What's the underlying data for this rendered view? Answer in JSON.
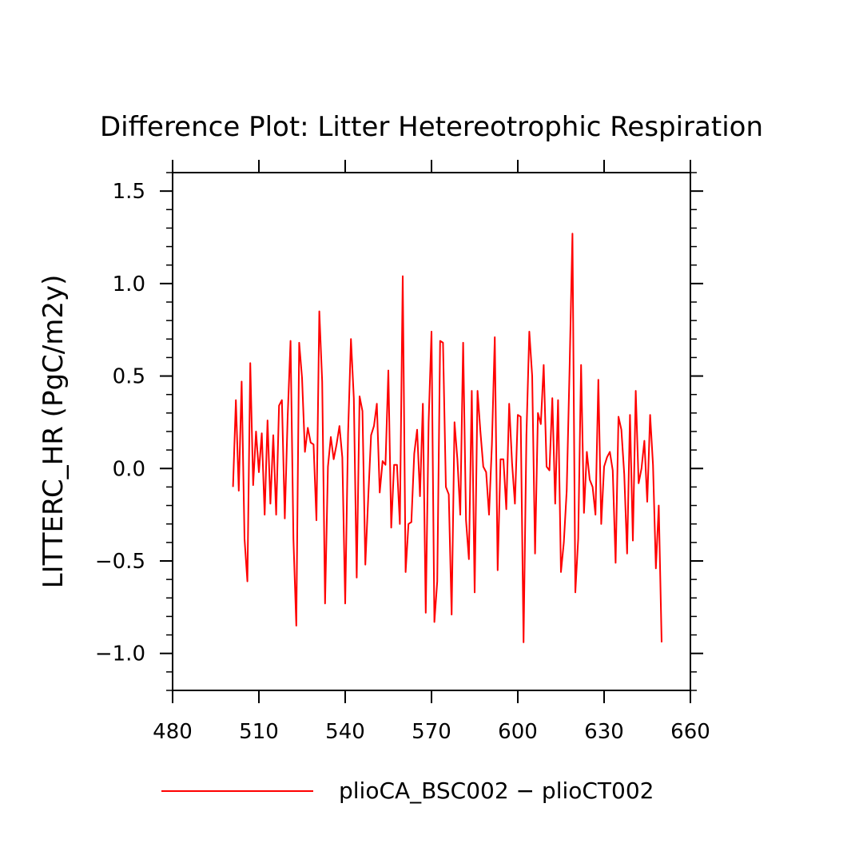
{
  "chart_data": {
    "type": "line",
    "title": "Difference Plot: Litter Hetereotrophic Respiration",
    "xlabel": "",
    "ylabel": "LITTERC_HR  (PgC/m2y)",
    "xlim": [
      480,
      660
    ],
    "ylim": [
      -1.2,
      1.6
    ],
    "xticks": [
      480,
      510,
      540,
      570,
      600,
      630,
      660
    ],
    "xtick_labels": [
      "480",
      "510",
      "540",
      "570",
      "600",
      "630",
      "660"
    ],
    "yticks": [
      -1.0,
      -0.5,
      0.0,
      0.5,
      1.0,
      1.5
    ],
    "ytick_labels": [
      "−1.0",
      "−0.5",
      "0.0",
      "0.5",
      "1.0",
      "1.5"
    ],
    "grid": false,
    "legend_position": "bottom",
    "series": [
      {
        "name": "plioCA_BSC002 − plioCT002",
        "color": "#ff0000",
        "x": [
          501,
          502,
          503,
          504,
          505,
          506,
          507,
          508,
          509,
          510,
          511,
          512,
          513,
          514,
          515,
          516,
          517,
          518,
          519,
          520,
          521,
          522,
          523,
          524,
          525,
          526,
          527,
          528,
          529,
          530,
          531,
          532,
          533,
          534,
          535,
          536,
          537,
          538,
          539,
          540,
          541,
          542,
          543,
          544,
          545,
          546,
          547,
          548,
          549,
          550,
          551,
          552,
          553,
          554,
          555,
          556,
          557,
          558,
          559,
          560,
          561,
          562,
          563,
          564,
          565,
          566,
          567,
          568,
          569,
          570,
          571,
          572,
          573,
          574,
          575,
          576,
          577,
          578,
          579,
          580,
          581,
          582,
          583,
          584,
          585,
          586,
          587,
          588,
          589,
          590,
          591,
          592,
          593,
          594,
          595,
          596,
          597,
          598,
          599,
          600,
          601,
          602,
          603,
          604,
          605,
          606,
          607,
          608,
          609,
          610,
          611,
          612,
          613,
          614,
          615,
          616,
          617,
          618,
          619,
          620,
          621,
          622,
          623,
          624,
          625,
          626,
          627,
          628,
          629,
          630,
          631,
          632,
          633,
          634,
          635,
          636,
          637,
          638,
          639,
          640,
          641,
          642,
          643,
          644,
          645,
          646,
          647,
          648,
          649,
          650
        ],
        "y": [
          -0.1,
          0.37,
          -0.12,
          0.47,
          -0.38,
          -0.61,
          0.57,
          -0.09,
          0.2,
          -0.02,
          0.19,
          -0.25,
          0.26,
          -0.19,
          0.18,
          -0.25,
          0.34,
          0.37,
          -0.27,
          0.28,
          0.69,
          -0.38,
          -0.85,
          0.68,
          0.49,
          0.09,
          0.22,
          0.14,
          0.13,
          -0.28,
          0.85,
          0.47,
          -0.73,
          0.01,
          0.17,
          0.05,
          0.13,
          0.23,
          0.06,
          -0.73,
          0.19,
          0.7,
          0.38,
          -0.59,
          0.39,
          0.31,
          -0.52,
          -0.16,
          0.18,
          0.23,
          0.35,
          -0.13,
          0.04,
          0.02,
          0.53,
          -0.32,
          0.02,
          0.02,
          -0.3,
          1.04,
          -0.56,
          -0.3,
          -0.29,
          0.08,
          0.21,
          -0.15,
          0.35,
          -0.78,
          0.25,
          0.74,
          -0.83,
          -0.61,
          0.69,
          0.68,
          -0.1,
          -0.14,
          -0.79,
          0.25,
          0.05,
          -0.25,
          0.68,
          -0.28,
          -0.49,
          0.42,
          -0.67,
          0.42,
          0.2,
          0.01,
          -0.02,
          -0.25,
          0.13,
          0.71,
          -0.55,
          0.05,
          0.05,
          -0.22,
          0.35,
          0.03,
          -0.19,
          0.29,
          0.28,
          -0.94,
          0.18,
          0.74,
          0.5,
          -0.46,
          0.3,
          0.24,
          0.56,
          0.01,
          -0.01,
          0.38,
          -0.19,
          0.37,
          -0.56,
          -0.4,
          -0.12,
          0.54,
          1.27,
          -0.67,
          -0.38,
          0.56,
          -0.24,
          0.09,
          -0.06,
          -0.1,
          -0.25,
          0.48,
          -0.3,
          0.01,
          0.06,
          0.09,
          -0.01,
          -0.51,
          0.28,
          0.21,
          -0.03,
          -0.46,
          0.29,
          -0.39,
          0.42,
          -0.08,
          0.0,
          0.15,
          -0.18,
          0.29,
          0.02,
          -0.54,
          -0.2,
          -0.94
        ]
      }
    ]
  }
}
